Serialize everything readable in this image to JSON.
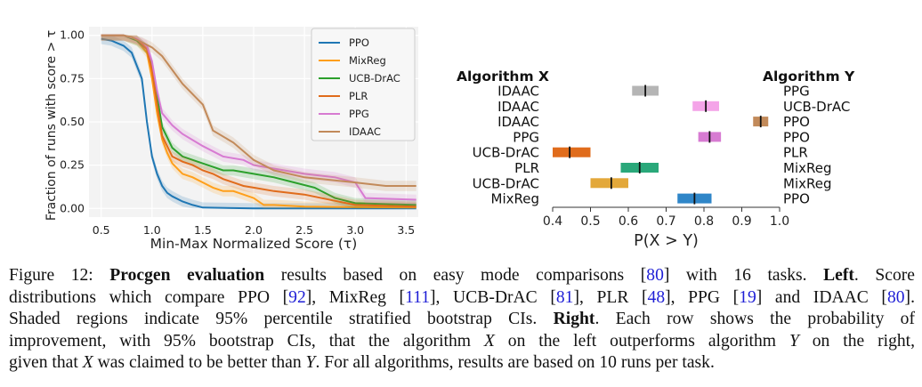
{
  "chart_data": [
    {
      "type": "line",
      "title": "",
      "xlabel": "Min-Max Normalized Score (τ)",
      "ylabel": "Fraction of runs with score > τ",
      "xlim": [
        0.38,
        3.62
      ],
      "ylim": [
        -0.05,
        1.05
      ],
      "xticks": [
        "0.5",
        "1.0",
        "1.5",
        "2.0",
        "2.5",
        "3.0",
        "3.5"
      ],
      "xtick_values": [
        0.5,
        1.0,
        1.5,
        2.0,
        2.5,
        3.0,
        3.5
      ],
      "yticks": [
        "0.00",
        "0.25",
        "0.50",
        "0.75",
        "1.00"
      ],
      "ytick_values": [
        0.0,
        0.25,
        0.5,
        0.75,
        1.0
      ],
      "grid": true,
      "legend": "top-right",
      "shaded": "95% percentile stratified bootstrap CIs",
      "series": [
        {
          "name": "PPO",
          "color": "#1f77b4",
          "x": [
            0.5,
            0.6,
            0.72,
            0.8,
            0.9,
            0.95,
            1.0,
            1.05,
            1.1,
            1.15,
            1.2,
            1.3,
            1.4,
            1.5,
            2.0,
            3.6
          ],
          "y": [
            0.98,
            0.97,
            0.94,
            0.9,
            0.75,
            0.5,
            0.3,
            0.2,
            0.13,
            0.09,
            0.07,
            0.04,
            0.02,
            0.005,
            0.0,
            0.0
          ]
        },
        {
          "name": "MixReg",
          "color": "#ff9f1a",
          "x": [
            0.5,
            0.72,
            0.85,
            0.95,
            1.0,
            1.05,
            1.1,
            1.15,
            1.2,
            1.3,
            1.4,
            1.5,
            1.6,
            1.7,
            1.8,
            2.0,
            2.1,
            2.2,
            2.5,
            3.6
          ],
          "y": [
            1.0,
            1.0,
            0.97,
            0.9,
            0.75,
            0.55,
            0.4,
            0.32,
            0.26,
            0.2,
            0.18,
            0.15,
            0.12,
            0.1,
            0.1,
            0.06,
            0.02,
            0.02,
            0.01,
            0.005
          ]
        },
        {
          "name": "UCB-DrAC",
          "color": "#2ca02c",
          "x": [
            0.5,
            0.72,
            0.85,
            0.95,
            1.0,
            1.05,
            1.1,
            1.2,
            1.3,
            1.4,
            1.5,
            1.6,
            1.7,
            1.8,
            2.0,
            2.2,
            2.4,
            2.6,
            2.8,
            3.0,
            3.6
          ],
          "y": [
            1.0,
            1.0,
            0.97,
            0.92,
            0.82,
            0.65,
            0.47,
            0.35,
            0.3,
            0.28,
            0.26,
            0.24,
            0.22,
            0.22,
            0.2,
            0.18,
            0.15,
            0.12,
            0.06,
            0.03,
            0.02
          ]
        },
        {
          "name": "PLR",
          "color": "#e06c1c",
          "x": [
            0.5,
            0.72,
            0.85,
            0.95,
            1.0,
            1.05,
            1.1,
            1.2,
            1.3,
            1.4,
            1.5,
            1.6,
            1.7,
            1.8,
            1.9,
            2.0,
            2.2,
            2.5,
            3.0,
            3.6
          ],
          "y": [
            1.0,
            1.0,
            0.98,
            0.92,
            0.8,
            0.6,
            0.42,
            0.3,
            0.27,
            0.25,
            0.22,
            0.2,
            0.17,
            0.15,
            0.13,
            0.12,
            0.1,
            0.08,
            0.02,
            0.01
          ]
        },
        {
          "name": "PPG",
          "color": "#d77bd2",
          "x": [
            0.5,
            0.72,
            0.85,
            0.95,
            1.0,
            1.05,
            1.1,
            1.2,
            1.3,
            1.5,
            1.7,
            1.9,
            2.0,
            2.2,
            2.5,
            2.8,
            3.0,
            3.1,
            3.6
          ],
          "y": [
            1.0,
            1.0,
            0.98,
            0.94,
            0.85,
            0.68,
            0.55,
            0.48,
            0.43,
            0.36,
            0.3,
            0.28,
            0.25,
            0.23,
            0.2,
            0.18,
            0.15,
            0.06,
            0.05
          ]
        },
        {
          "name": "IDAAC",
          "color": "#c28a5a",
          "x": [
            0.5,
            0.72,
            0.8,
            0.9,
            1.0,
            1.1,
            1.2,
            1.3,
            1.5,
            1.6,
            1.8,
            2.0,
            2.2,
            2.5,
            3.0,
            3.3,
            3.6
          ],
          "y": [
            1.0,
            1.0,
            0.99,
            0.96,
            0.93,
            0.88,
            0.8,
            0.72,
            0.6,
            0.45,
            0.38,
            0.28,
            0.22,
            0.18,
            0.15,
            0.13,
            0.13
          ]
        }
      ]
    },
    {
      "type": "interval",
      "title": "",
      "xlabel": "P(X > Y)",
      "xlim": [
        0.4,
        1.0
      ],
      "xticks": [
        "0.4",
        "0.5",
        "0.6",
        "0.7",
        "0.8",
        "0.9",
        "1.0"
      ],
      "xtick_values": [
        0.4,
        0.5,
        0.6,
        0.7,
        0.8,
        0.9,
        1.0
      ],
      "left_header": "Algorithm X",
      "right_header": "Algorithm Y",
      "rows": [
        {
          "x": "IDAAC",
          "y": "PPG",
          "low": 0.61,
          "high": 0.68,
          "point": 0.645,
          "color": "#b5b5b5"
        },
        {
          "x": "IDAAC",
          "y": "UCB-DrAC",
          "low": 0.77,
          "high": 0.84,
          "point": 0.805,
          "color": "#f4a4e8"
        },
        {
          "x": "IDAAC",
          "y": "PPO",
          "low": 0.93,
          "high": 0.97,
          "point": 0.95,
          "color": "#c28a5a"
        },
        {
          "x": "PPG",
          "y": "PPO",
          "low": 0.785,
          "high": 0.845,
          "point": 0.815,
          "color": "#d77bd2"
        },
        {
          "x": "UCB-DrAC",
          "y": "PLR",
          "low": 0.4,
          "high": 0.5,
          "point": 0.445,
          "color": "#e06c1c"
        },
        {
          "x": "PLR",
          "y": "MixReg",
          "low": 0.58,
          "high": 0.68,
          "point": 0.63,
          "color": "#2aa87a"
        },
        {
          "x": "UCB-DrAC",
          "y": "MixReg",
          "low": 0.5,
          "high": 0.6,
          "point": 0.555,
          "color": "#e3a83a"
        },
        {
          "x": "MixReg",
          "y": "PPO",
          "low": 0.73,
          "high": 0.82,
          "point": 0.775,
          "color": "#2f86c8"
        }
      ]
    }
  ],
  "caption": {
    "fig_label": "Figure 12: ",
    "title_bold": "Procgen evaluation",
    "l1a": " results based on easy mode comparisons [",
    "ref80": "80",
    "l1b": "] with 16 tasks. ",
    "left_bold": "Left",
    "l1c": ". Score",
    "l2a": "distributions which compare PPO [",
    "ref92": "92",
    "l2b": "], MixReg [",
    "ref111": "111",
    "l2c": "], UCB-DrAC [",
    "ref81": "81",
    "l2d": "], PLR [",
    "ref48": "48",
    "l2e": "], PPG [",
    "ref19": "19",
    "l2f": "] and IDAAC [",
    "ref80b": "80",
    "l2g": "].",
    "l3a": "Shaded regions indicate 95% percentile stratified bootstrap CIs. ",
    "right_bold": "Right",
    "l3b": ". Each row shows the probability of",
    "l4a": "improvement, with 95% bootstrap CIs, that the algorithm ",
    "X1": "X",
    "l4b": " on the left outperforms algorithm ",
    "Y1": "Y",
    "l4c": " on the right,",
    "l5a": "given that ",
    "X2": "X",
    "l5b": " was claimed to be better than ",
    "Y2": "Y",
    "l5c": ". For all algorithms, results are based on 10 runs per task."
  }
}
